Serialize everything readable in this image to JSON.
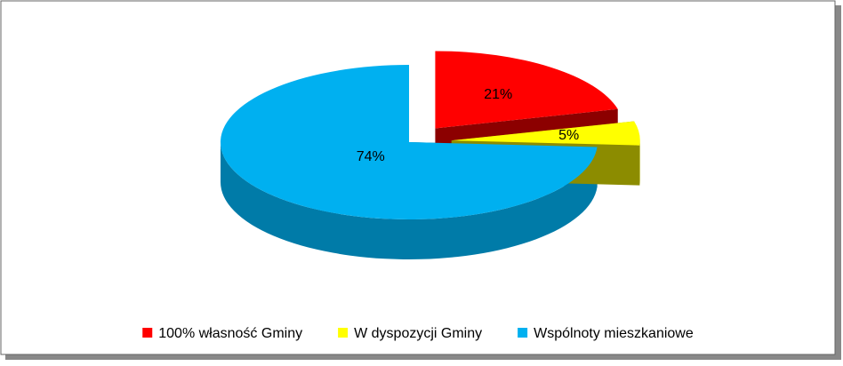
{
  "chart_data": {
    "type": "pie",
    "categories": [
      "100% własność Gminy",
      "W dyspozycji Gminy",
      "Wspólnoty mieszkaniowe"
    ],
    "values": [
      21,
      5,
      74
    ],
    "value_labels": [
      "21%",
      "5%",
      "74%"
    ],
    "colors": [
      "#ff0000",
      "#ffff00",
      "#00b0f0"
    ],
    "exploded": [
      true,
      true,
      false
    ],
    "legend": "bottom"
  }
}
